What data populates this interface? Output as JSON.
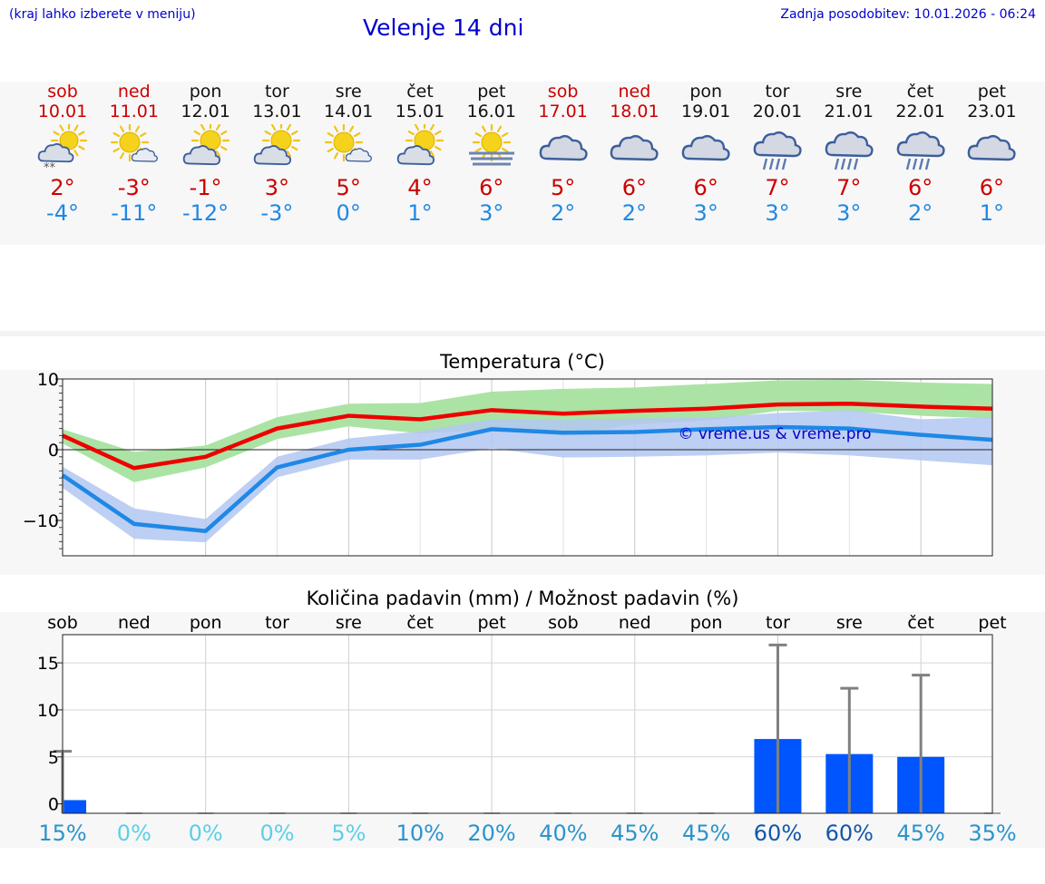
{
  "header": {
    "note": "(kraj lahko izberete v meniju)",
    "title": "Velenje 14 dni",
    "updated": "Zadnja posodobitev: 10.01.2026 - 06:24"
  },
  "days": [
    {
      "weekday": "sob",
      "date": "10.01",
      "weekend": true,
      "icon": "partly-sunny-snow-icon",
      "tmax": "2°",
      "tmin": "-4°"
    },
    {
      "weekday": "ned",
      "date": "11.01",
      "weekend": true,
      "icon": "sun-with-cloud-icon",
      "tmax": "-3°",
      "tmin": "-11°"
    },
    {
      "weekday": "pon",
      "date": "12.01",
      "weekend": false,
      "icon": "partly-sunny-icon",
      "tmax": "-1°",
      "tmin": "-12°"
    },
    {
      "weekday": "tor",
      "date": "13.01",
      "weekend": false,
      "icon": "partly-sunny-icon",
      "tmax": "3°",
      "tmin": "-3°"
    },
    {
      "weekday": "sre",
      "date": "14.01",
      "weekend": false,
      "icon": "sun-with-cloud-icon",
      "tmax": "5°",
      "tmin": "0°"
    },
    {
      "weekday": "čet",
      "date": "15.01",
      "weekend": false,
      "icon": "partly-sunny-icon",
      "tmax": "4°",
      "tmin": "1°"
    },
    {
      "weekday": "pet",
      "date": "16.01",
      "weekend": false,
      "icon": "sun-fog-icon",
      "tmax": "6°",
      "tmin": "3°"
    },
    {
      "weekday": "sob",
      "date": "17.01",
      "weekend": true,
      "icon": "cloudy-icon",
      "tmax": "5°",
      "tmin": "2°"
    },
    {
      "weekday": "ned",
      "date": "18.01",
      "weekend": true,
      "icon": "cloudy-icon",
      "tmax": "6°",
      "tmin": "2°"
    },
    {
      "weekday": "pon",
      "date": "19.01",
      "weekend": false,
      "icon": "cloudy-icon",
      "tmax": "6°",
      "tmin": "3°"
    },
    {
      "weekday": "tor",
      "date": "20.01",
      "weekend": false,
      "icon": "rain-icon",
      "tmax": "7°",
      "tmin": "3°"
    },
    {
      "weekday": "sre",
      "date": "21.01",
      "weekend": false,
      "icon": "rain-icon",
      "tmax": "7°",
      "tmin": "3°"
    },
    {
      "weekday": "čet",
      "date": "22.01",
      "weekend": false,
      "icon": "rain-icon",
      "tmax": "6°",
      "tmin": "2°"
    },
    {
      "weekday": "pet",
      "date": "23.01",
      "weekend": false,
      "icon": "cloudy-icon",
      "tmax": "6°",
      "tmin": "1°"
    }
  ],
  "colors": {
    "weekend": "#cc0000",
    "max": "#ee0000",
    "min": "#1e88e5",
    "max_band": "#abe3a4",
    "min_band": "#b3c7f2",
    "overlap": "#7dbfb0",
    "bar": "#0055ff",
    "errbar": "#808080",
    "link": "#0000cc"
  },
  "chart_data": [
    {
      "type": "line",
      "title": "Temperatura (°C)",
      "ylim": [
        -15,
        10
      ],
      "yticks": [
        10,
        0,
        -10
      ],
      "ytick_labels": [
        "10",
        "0",
        "−10"
      ],
      "x": [
        0,
        1,
        2,
        3,
        4,
        5,
        6,
        7,
        8,
        9,
        10,
        11,
        12,
        13
      ],
      "watermark": "© vreme.us & vreme.pro",
      "series": [
        {
          "name": "max",
          "values": [
            2,
            -2.6,
            -1,
            3,
            4.8,
            4.3,
            5.6,
            5.1,
            5.5,
            5.8,
            6.4,
            6.5,
            6.1,
            5.8
          ],
          "band_low": [
            0.9,
            -4.6,
            -2.5,
            1.5,
            3.3,
            2.3,
            2.8,
            2.0,
            3.6,
            4.1,
            5.5,
            5.4,
            4.8,
            4.4
          ],
          "band_high": [
            2.9,
            -0.3,
            0.6,
            4.6,
            6.5,
            6.6,
            8.2,
            8.6,
            8.8,
            9.3,
            9.8,
            9.9,
            9.5,
            9.3
          ]
        },
        {
          "name": "min",
          "values": [
            -3.6,
            -10.5,
            -11.5,
            -2.5,
            0,
            0.7,
            2.9,
            2.4,
            2.5,
            2.9,
            3.2,
            3.0,
            2.1,
            1.4
          ],
          "band_low": [
            -5.4,
            -12.6,
            -13.1,
            -3.9,
            -1.4,
            -1.4,
            0.2,
            -1.1,
            -1.0,
            -0.8,
            -0.4,
            -0.8,
            -1.5,
            -2.2
          ],
          "band_high": [
            -2.4,
            -8.3,
            -9.8,
            -1.0,
            1.6,
            2.6,
            4.3,
            4.2,
            4.4,
            4.5,
            5.2,
            5.6,
            4.3,
            4.6
          ]
        }
      ]
    },
    {
      "type": "bar",
      "title": "Količina padavin (mm) / Možnost padavin (%)",
      "ylim": [
        -1,
        18
      ],
      "yticks": [
        15,
        10,
        5,
        0
      ],
      "categories": [
        "sob",
        "ned",
        "pon",
        "tor",
        "sre",
        "čet",
        "pet",
        "sob",
        "ned",
        "pon",
        "tor",
        "sre",
        "čet",
        "pet"
      ],
      "values": [
        0.4,
        0,
        0,
        0,
        0,
        0,
        0,
        0,
        0,
        0,
        6.9,
        5.3,
        5.0,
        0
      ],
      "error_high": [
        5.6,
        0,
        0,
        0,
        0,
        0,
        0,
        0,
        0,
        0,
        16.9,
        12.3,
        13.7,
        0
      ],
      "probability": [
        "15%",
        "0%",
        "0%",
        "0%",
        "5%",
        "10%",
        "20%",
        "40%",
        "45%",
        "45%",
        "60%",
        "60%",
        "45%",
        "35%"
      ],
      "probability_colors": [
        "#2b94cc",
        "#5bd0e6",
        "#5bd0e6",
        "#5bd0e6",
        "#5bd0e6",
        "#2b94cc",
        "#2b94cc",
        "#2b94cc",
        "#2b94cc",
        "#2b94cc",
        "#1457a8",
        "#1457a8",
        "#2b94cc",
        "#2b94cc"
      ]
    }
  ]
}
